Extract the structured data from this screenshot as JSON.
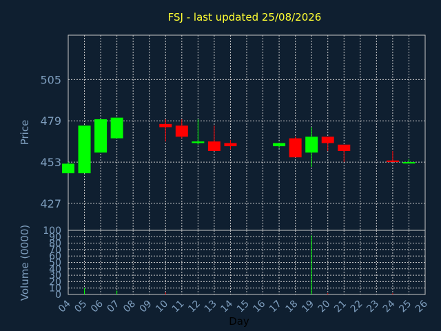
{
  "chart_data": [
    {
      "type": "candlestick",
      "title": "FSJ - last updated 25/08/2026",
      "ylabel": "Price",
      "xlabel": "Day",
      "ylim": [
        410,
        533
      ],
      "yticks": [
        427,
        453,
        479,
        505
      ],
      "grid": true,
      "colors": {
        "up": "#00ff00",
        "down": "#ff0000",
        "grid": "#c8c8c8",
        "background": "#0f1f30"
      },
      "x": [
        "04",
        "05",
        "06",
        "07",
        "08",
        "09",
        "10",
        "11",
        "12",
        "13",
        "14",
        "15",
        "16",
        "17",
        "18",
        "19",
        "20",
        "21",
        "22",
        "23",
        "24",
        "25",
        "26"
      ],
      "candles": [
        {
          "day": "04",
          "open": 446,
          "high": 453,
          "low": 446,
          "close": 452
        },
        {
          "day": "05",
          "open": 446,
          "high": 476,
          "low": 446,
          "close": 476
        },
        {
          "day": "06",
          "open": 459,
          "high": 480,
          "low": 459,
          "close": 480
        },
        {
          "day": "07",
          "open": 468,
          "high": 481,
          "low": 468,
          "close": 481
        },
        {
          "day": "10",
          "open": 477,
          "high": 480,
          "low": 466,
          "close": 475
        },
        {
          "day": "11",
          "open": 476,
          "high": 480,
          "low": 468,
          "close": 469
        },
        {
          "day": "12",
          "open": 465,
          "high": 480,
          "low": 464,
          "close": 466
        },
        {
          "day": "13",
          "open": 466,
          "high": 476,
          "low": 460,
          "close": 460
        },
        {
          "day": "14",
          "open": 465,
          "high": 467,
          "low": 461,
          "close": 463
        },
        {
          "day": "17",
          "open": 463,
          "high": 465,
          "low": 462,
          "close": 465
        },
        {
          "day": "18",
          "open": 468,
          "high": 469,
          "low": 456,
          "close": 456
        },
        {
          "day": "19",
          "open": 459,
          "high": 475,
          "low": 450,
          "close": 469
        },
        {
          "day": "20",
          "open": 469,
          "high": 469,
          "low": 460,
          "close": 465
        },
        {
          "day": "21",
          "open": 464,
          "high": 464,
          "low": 453,
          "close": 460
        },
        {
          "day": "24",
          "open": 454,
          "high": 460,
          "low": 453,
          "close": 453
        },
        {
          "day": "25",
          "open": 453,
          "high": 455,
          "low": 453,
          "close": 453
        }
      ]
    },
    {
      "type": "bar",
      "ylabel": "Volume (0000)",
      "ylim": [
        0,
        100
      ],
      "yticks": [
        0,
        10,
        20,
        30,
        40,
        50,
        60,
        70,
        80,
        90,
        100
      ],
      "x": [
        "04",
        "05",
        "06",
        "07",
        "08",
        "09",
        "10",
        "11",
        "12",
        "13",
        "14",
        "15",
        "16",
        "17",
        "18",
        "19",
        "20",
        "21",
        "22",
        "23",
        "24",
        "25",
        "26"
      ],
      "bars": [
        {
          "day": "05",
          "value": 10,
          "color": "#00ff00"
        },
        {
          "day": "07",
          "value": 6,
          "color": "#00ff00"
        },
        {
          "day": "10",
          "value": 3,
          "color": "#ff0000"
        },
        {
          "day": "19",
          "value": 92,
          "color": "#00ff00"
        },
        {
          "day": "20",
          "value": 2,
          "color": "#ff0000"
        },
        {
          "day": "24",
          "value": 2,
          "color": "#ff0000"
        }
      ]
    }
  ]
}
